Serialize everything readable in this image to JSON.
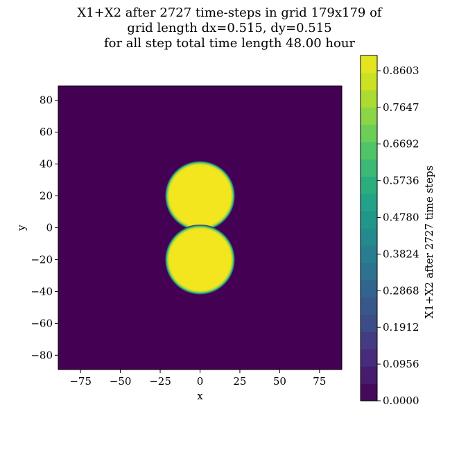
{
  "chart_data": {
    "type": "heatmap",
    "title_lines": [
      "X1+X2 after 2727 time-steps in grid 179x179 of",
      "grid length dx=0.515, dy=0.515",
      "for all step total time length 48.00 hour"
    ],
    "xlabel": "x",
    "ylabel": "y",
    "xlim": [
      -89,
      89
    ],
    "ylim": [
      -89,
      89
    ],
    "xticks": [
      -75,
      -50,
      -25,
      0,
      25,
      50,
      75
    ],
    "yticks": [
      -80,
      -60,
      -40,
      -20,
      0,
      20,
      40,
      60,
      80
    ],
    "xtick_labels": [
      "−75",
      "−50",
      "−25",
      "0",
      "25",
      "50",
      "75"
    ],
    "ytick_labels": [
      "−80",
      "−60",
      "−40",
      "−20",
      "0",
      "20",
      "40",
      "60",
      "80"
    ],
    "colormap": "viridis",
    "background_value": 0.0,
    "features": [
      {
        "shape": "disk",
        "center": [
          0,
          20
        ],
        "radius": 22,
        "value": 0.9
      },
      {
        "shape": "disk",
        "center": [
          0,
          -20
        ],
        "radius": 22,
        "value": 0.9
      }
    ],
    "colorbar": {
      "label": "X1+X2 after 2727 time steps",
      "range": [
        0.0,
        0.9
      ],
      "levels": 20,
      "tick_values": [
        0.0,
        0.0956,
        0.1912,
        0.2868,
        0.3824,
        0.478,
        0.5736,
        0.6692,
        0.7647,
        0.8603
      ],
      "tick_labels": [
        "0.0000",
        "0.0956",
        "0.1912",
        "0.2868",
        "0.3824",
        "0.4780",
        "0.5736",
        "0.6692",
        "0.7647",
        "0.8603"
      ]
    },
    "grid": false,
    "colors": {
      "low": "#440154",
      "high": "#f3e51e"
    }
  }
}
